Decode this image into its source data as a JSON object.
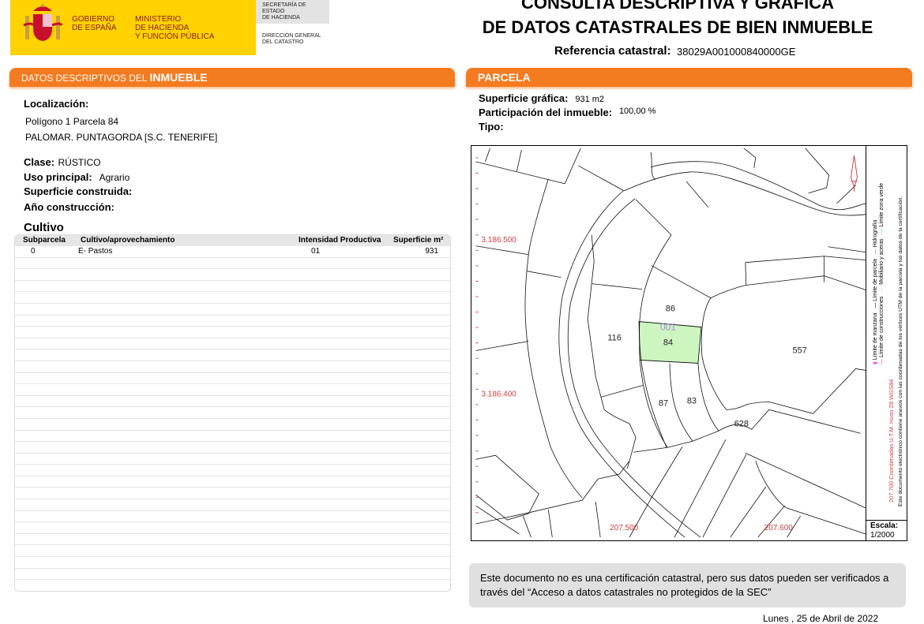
{
  "header": {
    "gov_line1": "GOBIERNO",
    "gov_line2": "DE ESPAÑA",
    "min_line1": "MINISTERIO",
    "min_line2": "DE HACIENDA",
    "min_line3": "Y FUNCIÓN PÚBLICA",
    "sec_line1": "SECRETARÍA DE ESTADO",
    "sec_line2": "DE HACIENDA",
    "dir_line1": "DIRECCIÓN GENERAL",
    "dir_line2": "DEL CATASTRO",
    "title_line1": "CONSULTA DESCRIPTIVA Y GRÁFICA",
    "title_line2": "DE DATOS CATASTRALES DE BIEN INMUEBLE",
    "ref_label": "Referencia catastral:",
    "ref_value": "38029A001000840000GE",
    "brand_color": "#ffd200",
    "accent_color": "#f47b20"
  },
  "left": {
    "header_prefix": "DATOS DESCRIPTIVOS DEL ",
    "header_bold": "INMUEBLE",
    "loc_label": "Localización:",
    "loc_line1": "Polígono 1 Parcela 84",
    "loc_line2": "PALOMAR. PUNTAGORDA [S.C. TENERIFE]",
    "clase_label": "Clase:",
    "clase_value": "RÚSTICO",
    "uso_label": "Uso principal:",
    "uso_value": "Agrario",
    "sup_label": "Superficie construida:",
    "anio_label": "Año construcción:",
    "cultivo_label": "Cultivo",
    "table": {
      "columns": [
        "Subparcela",
        "Cultivo/aprovechamiento",
        "Intensidad Productiva",
        "Superficie m²"
      ],
      "rows": [
        [
          "0",
          "E- Pastos",
          "01",
          "931"
        ]
      ]
    }
  },
  "right": {
    "header": "PARCELA",
    "sup_label": "Superficie gráfica:",
    "sup_value": "931 m2",
    "part_label": "Participación del inmueble:",
    "part_value": "100,00 %",
    "tipo_label": "Tipo:",
    "map": {
      "coord_y1": "3.186.500",
      "coord_y2": "3.186.400",
      "coord_x1": "207.500",
      "coord_x2": "207.600",
      "parcels": {
        "p86": "86",
        "p001": "001",
        "p84": "84",
        "p116": "116",
        "p557": "557",
        "p87": "87",
        "p83": "83",
        "p628": "628"
      },
      "highlight_color": "#ccf5c0",
      "legend_manzana": "Límite de manzana",
      "legend_parcela": "Límite de parcela",
      "legend_hidro": "Hidrografía",
      "legend_constr": "Límite de construcciones",
      "legend_mobil": "Mobiliario y aceras",
      "legend_verde": "Límite zona verde",
      "coord_system": "207.700 Coordenadas U.T.M. Huso 28 WGS84",
      "doc_note": "Este documento electrónico contiene anexos con las coordenadas de los vértices UTM de la parcela y los datos de la certificación.",
      "escala_label": "Escala:",
      "escala_value": "1/2000"
    },
    "note": "Este documento no es una certificación catastral, pero sus datos pueden ser verificados a través del “Acceso a datos catastrales no protegidos de la SEC”",
    "date": "Lunes , 25 de Abril de 2022"
  }
}
